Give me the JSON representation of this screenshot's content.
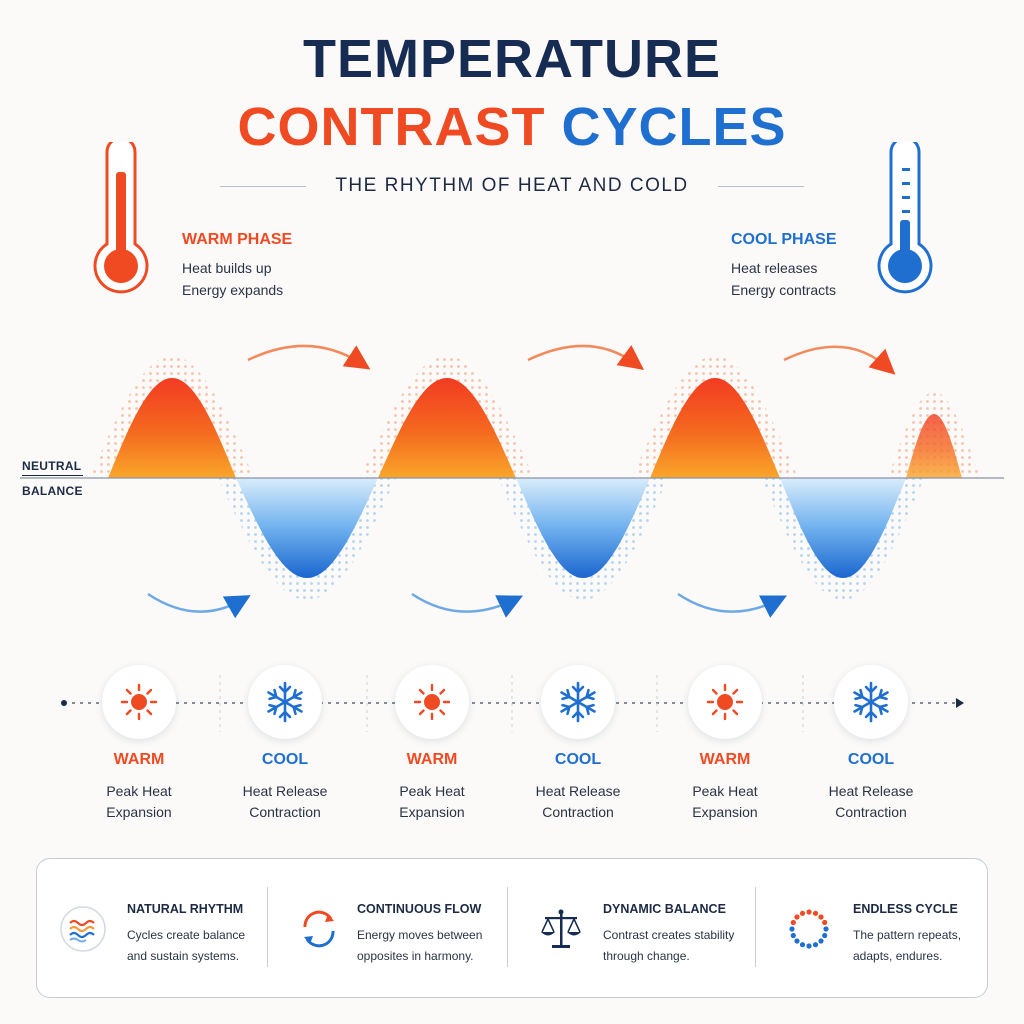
{
  "title": {
    "line1": "TEMPERATURE",
    "line2_warm": "CONTRAST",
    "line2_cool": "CYCLES",
    "subtitle": "THE RHYTHM OF HEAT AND COLD"
  },
  "warm_phase": {
    "title": "WARM PHASE",
    "line1": "Heat builds up",
    "line2": "Energy expands"
  },
  "cool_phase": {
    "title": "COOL PHASE",
    "line1": "Heat releases",
    "line2": "Energy contracts"
  },
  "wave": {
    "neutral_line1": "NEUTRAL",
    "neutral_line2": "BALANCE",
    "warm_color": "#f04a23",
    "cool_color": "#1f6fd1"
  },
  "phases": [
    {
      "label": "WARM",
      "line1": "Peak Heat",
      "line2": "Expansion",
      "icon": "sun-icon"
    },
    {
      "label": "COOL",
      "line1": "Heat Release",
      "line2": "Contraction",
      "icon": "snowflake-icon"
    },
    {
      "label": "WARM",
      "line1": "Peak Heat",
      "line2": "Expansion",
      "icon": "sun-icon"
    },
    {
      "label": "COOL",
      "line1": "Heat Release",
      "line2": "Contraction",
      "icon": "snowflake-icon"
    },
    {
      "label": "WARM",
      "line1": "Peak Heat",
      "line2": "Expansion",
      "icon": "sun-icon"
    },
    {
      "label": "COOL",
      "line1": "Heat Release",
      "line2": "Contraction",
      "icon": "snowflake-icon"
    }
  ],
  "principles": [
    {
      "title": "NATURAL RHYTHM",
      "line1": "Cycles create balance",
      "line2": "and sustain systems.",
      "icon": "wave-lines-icon"
    },
    {
      "title": "CONTINUOUS FLOW",
      "line1": "Energy moves between",
      "line2": "opposites in harmony.",
      "icon": "cycle-arrows-icon"
    },
    {
      "title": "DYNAMIC BALANCE",
      "line1": "Contrast creates stability",
      "line2": "through change.",
      "icon": "scale-icon"
    },
    {
      "title": "ENDLESS CYCLE",
      "line1": "The pattern repeats,",
      "line2": "adapts, endures.",
      "icon": "dotted-circle-icon"
    }
  ]
}
